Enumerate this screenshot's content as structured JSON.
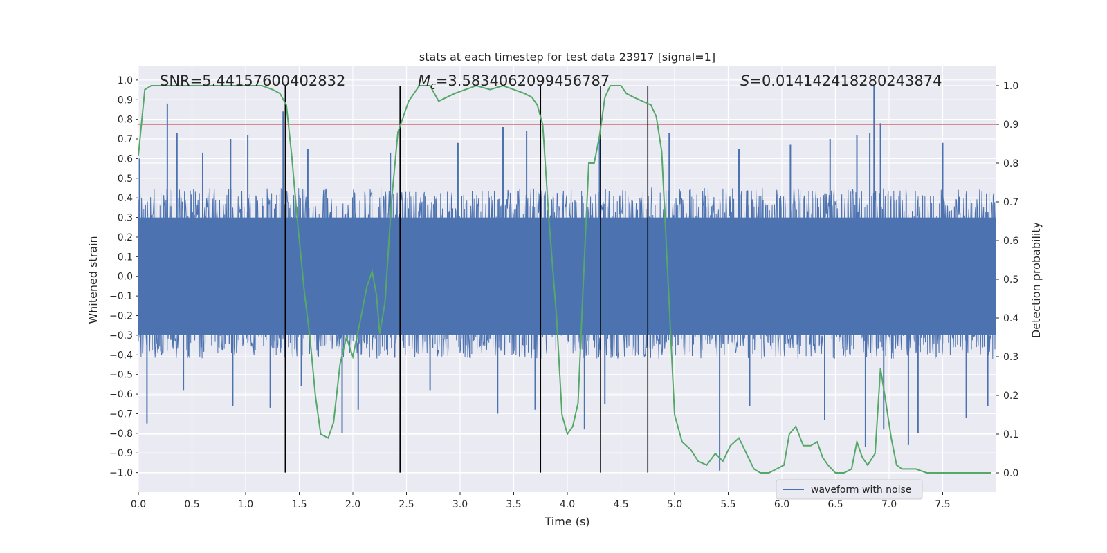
{
  "chart_data": {
    "type": "line",
    "title": "stats at each timestep for test data 23917 [signal=1]",
    "xlabel": "Time (s)",
    "ylabel": "Whitened strain",
    "y2label": "Detection probability",
    "xlim": [
      0.0,
      8.0
    ],
    "ylim": [
      -1.1,
      1.07
    ],
    "y2lim": [
      -0.05,
      1.05
    ],
    "x_ticks": [
      0.0,
      0.5,
      1.0,
      1.5,
      2.0,
      2.5,
      3.0,
      3.5,
      4.0,
      4.5,
      5.0,
      5.5,
      6.0,
      6.5,
      7.0,
      7.5
    ],
    "x_tick_labels": [
      "0.0",
      "0.5",
      "1.0",
      "1.5",
      "2.0",
      "2.5",
      "3.0",
      "3.5",
      "4.0",
      "4.5",
      "5.0",
      "5.5",
      "6.0",
      "6.5",
      "7.0",
      "7.5"
    ],
    "y_ticks": [
      1.0,
      0.9,
      0.8,
      0.7,
      0.6,
      0.5,
      0.4,
      0.3,
      0.2,
      0.1,
      0.0,
      -0.1,
      -0.2,
      -0.3,
      -0.4,
      -0.5,
      -0.6,
      -0.7,
      -0.8,
      -0.9,
      -1.0
    ],
    "y_tick_labels": [
      "1.0",
      "0.9",
      "0.8",
      "0.7",
      "0.6",
      "0.5",
      "0.4",
      "0.3",
      "0.2",
      "0.1",
      "0.0",
      "−0.1",
      "−0.2",
      "−0.3",
      "−0.4",
      "−0.5",
      "−0.6",
      "−0.7",
      "−0.8",
      "−0.9",
      "−1.0"
    ],
    "y2_ticks": [
      1.0,
      0.9,
      0.8,
      0.7,
      0.6,
      0.5,
      0.4,
      0.3,
      0.2,
      0.1,
      0.0
    ],
    "y2_tick_labels": [
      "1.0",
      "0.9",
      "0.8",
      "0.7",
      "0.6",
      "0.5",
      "0.4",
      "0.3",
      "0.2",
      "0.1",
      "0.0"
    ],
    "annotations": {
      "snr": "SNR=5.44157600402832",
      "mc_symbol": "M",
      "mc_subscript": "c",
      "mc_value": "=3.5834062099456787",
      "s_symbol": "S",
      "s_value": "=0.014142418280243874"
    },
    "threshold": {
      "y2": 0.9,
      "color": "#c44e52"
    },
    "vertical_lines": [
      1.37,
      2.44,
      3.75,
      4.31,
      4.75
    ],
    "waveform": {
      "name": "waveform with noise",
      "color": "#4c72b0",
      "sample_rate": 2048,
      "band_min": -0.42,
      "band_max": 0.45,
      "spikes_up": [
        [
          0.01,
          0.6
        ],
        [
          0.27,
          0.88
        ],
        [
          0.36,
          0.73
        ],
        [
          0.6,
          0.63
        ],
        [
          0.86,
          0.7
        ],
        [
          1.02,
          0.72
        ],
        [
          1.35,
          0.84
        ],
        [
          1.58,
          0.65
        ],
        [
          2.35,
          0.63
        ],
        [
          2.98,
          0.68
        ],
        [
          3.4,
          0.76
        ],
        [
          3.62,
          0.74
        ],
        [
          4.3,
          0.7
        ],
        [
          4.95,
          0.73
        ],
        [
          5.6,
          0.65
        ],
        [
          6.08,
          0.67
        ],
        [
          6.45,
          0.7
        ],
        [
          6.7,
          0.72
        ],
        [
          6.82,
          0.73
        ],
        [
          6.86,
          0.97
        ],
        [
          6.92,
          0.78
        ],
        [
          7.5,
          0.68
        ]
      ],
      "spikes_down": [
        [
          0.08,
          -0.75
        ],
        [
          0.42,
          -0.58
        ],
        [
          0.88,
          -0.66
        ],
        [
          1.23,
          -0.67
        ],
        [
          1.52,
          -0.56
        ],
        [
          1.9,
          -0.8
        ],
        [
          2.05,
          -0.68
        ],
        [
          2.72,
          -0.58
        ],
        [
          3.35,
          -0.7
        ],
        [
          3.7,
          -0.68
        ],
        [
          4.16,
          -0.78
        ],
        [
          4.35,
          -0.65
        ],
        [
          5.42,
          -0.99
        ],
        [
          5.7,
          -0.66
        ],
        [
          6.4,
          -0.73
        ],
        [
          6.78,
          -0.87
        ],
        [
          6.95,
          -0.78
        ],
        [
          7.18,
          -0.86
        ],
        [
          7.27,
          -0.8
        ],
        [
          7.72,
          -0.72
        ],
        [
          7.92,
          -0.66
        ]
      ],
      "legend_position": "lower-right"
    },
    "detection_probability": {
      "color": "#55a868",
      "x": [
        0.0,
        0.06,
        0.12,
        0.2,
        0.4,
        0.6,
        0.8,
        1.0,
        1.15,
        1.25,
        1.32,
        1.38,
        1.43,
        1.48,
        1.55,
        1.6,
        1.65,
        1.7,
        1.77,
        1.82,
        1.88,
        1.94,
        2.0,
        2.06,
        2.13,
        2.18,
        2.22,
        2.25,
        2.3,
        2.36,
        2.42,
        2.47,
        2.52,
        2.57,
        2.62,
        2.67,
        2.72,
        2.8,
        2.95,
        3.05,
        3.15,
        3.28,
        3.4,
        3.5,
        3.6,
        3.67,
        3.72,
        3.77,
        3.83,
        3.9,
        3.95,
        4.0,
        4.05,
        4.1,
        4.15,
        4.2,
        4.25,
        4.3,
        4.35,
        4.4,
        4.45,
        4.5,
        4.55,
        4.62,
        4.7,
        4.78,
        4.83,
        4.88,
        4.93,
        5.0,
        5.07,
        5.15,
        5.22,
        5.3,
        5.38,
        5.45,
        5.52,
        5.6,
        5.67,
        5.74,
        5.8,
        5.88,
        5.95,
        6.02,
        6.07,
        6.13,
        6.2,
        6.27,
        6.33,
        6.38,
        6.43,
        6.5,
        6.58,
        6.65,
        6.7,
        6.75,
        6.8,
        6.87,
        6.92,
        6.96,
        7.02,
        7.07,
        7.12,
        7.18,
        7.25,
        7.35,
        7.5,
        7.65,
        7.8,
        7.95
      ],
      "y": [
        0.82,
        0.99,
        1.0,
        1.0,
        1.0,
        1.0,
        1.0,
        1.0,
        1.0,
        0.99,
        0.98,
        0.95,
        0.82,
        0.66,
        0.46,
        0.35,
        0.2,
        0.1,
        0.09,
        0.13,
        0.28,
        0.35,
        0.3,
        0.38,
        0.48,
        0.52,
        0.46,
        0.36,
        0.44,
        0.7,
        0.88,
        0.92,
        0.96,
        0.98,
        1.0,
        1.0,
        1.0,
        0.96,
        0.98,
        0.99,
        1.0,
        0.99,
        1.0,
        0.99,
        0.98,
        0.97,
        0.95,
        0.9,
        0.65,
        0.4,
        0.15,
        0.1,
        0.12,
        0.18,
        0.5,
        0.8,
        0.8,
        0.87,
        0.97,
        1.0,
        1.0,
        1.0,
        0.98,
        0.97,
        0.96,
        0.95,
        0.92,
        0.83,
        0.55,
        0.15,
        0.08,
        0.06,
        0.03,
        0.02,
        0.05,
        0.03,
        0.07,
        0.09,
        0.05,
        0.01,
        0.0,
        0.0,
        0.01,
        0.02,
        0.1,
        0.12,
        0.07,
        0.07,
        0.08,
        0.04,
        0.02,
        0.0,
        0.0,
        0.01,
        0.08,
        0.04,
        0.02,
        0.05,
        0.27,
        0.2,
        0.09,
        0.02,
        0.01,
        0.01,
        0.01,
        0.0,
        0.0,
        0.0,
        0.0,
        0.0
      ]
    }
  }
}
